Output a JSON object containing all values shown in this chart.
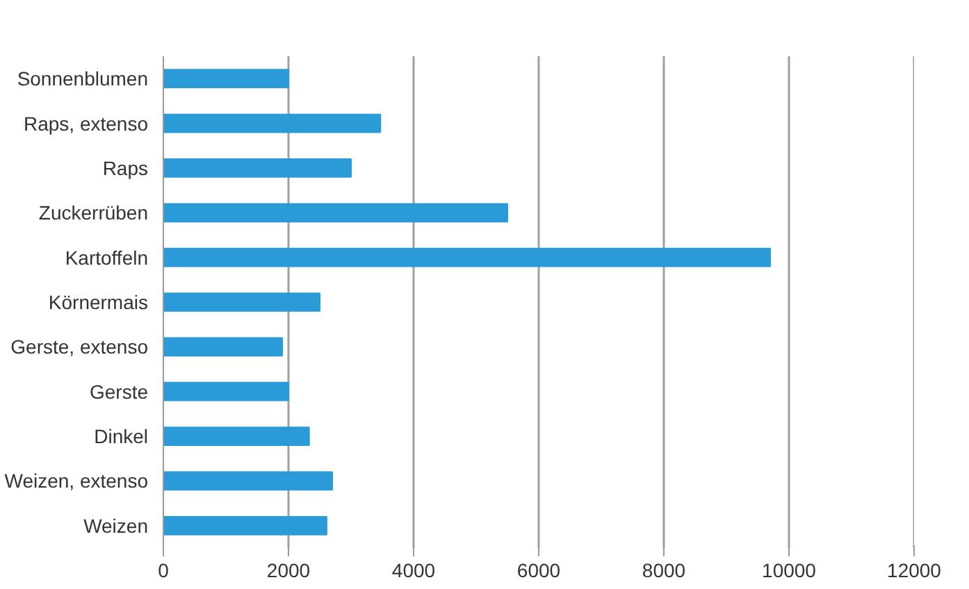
{
  "chart_data": {
    "type": "bar",
    "orientation": "horizontal",
    "categories": [
      "Sonnenblumen",
      "Raps, extenso",
      "Raps",
      "Zuckerrüben",
      "Kartoffeln",
      "Körnermais",
      "Gerste, extenso",
      "Gerste",
      "Dinkel",
      "Weizen, extenso",
      "Weizen"
    ],
    "values": [
      2000,
      3470,
      3000,
      5500,
      9700,
      2500,
      1900,
      2000,
      2330,
      2700,
      2610
    ],
    "color": "#2b9bd8",
    "xlim": [
      0,
      12000
    ],
    "xticks": [
      0,
      2000,
      4000,
      6000,
      8000,
      10000,
      12000
    ],
    "grid": "x"
  }
}
